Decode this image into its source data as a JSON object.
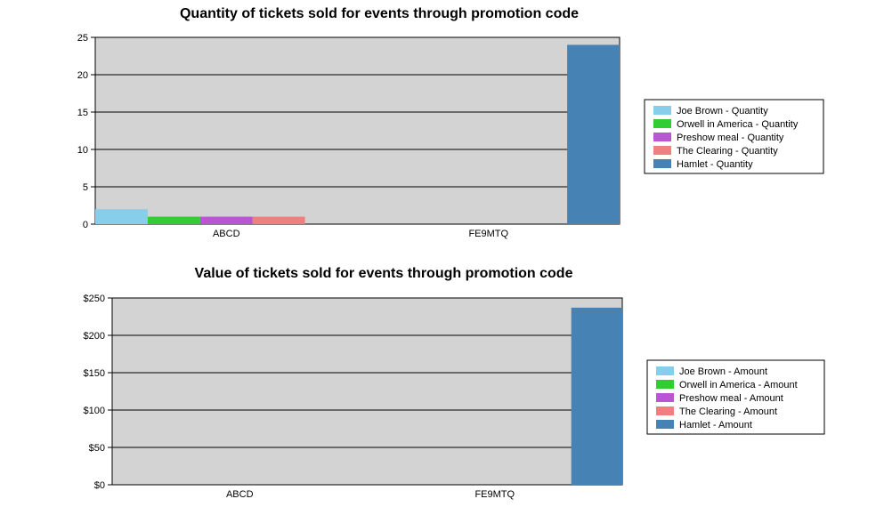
{
  "chart_data": [
    {
      "type": "bar",
      "title": "Quantity of tickets sold for events through promotion code",
      "categories": [
        "ABCD",
        "FE9MTQ"
      ],
      "ylim": [
        0,
        25
      ],
      "yticks": [
        0,
        5,
        10,
        15,
        20,
        25
      ],
      "ytick_labels": [
        "0",
        "5",
        "10",
        "15",
        "20",
        "25"
      ],
      "grid": true,
      "legend_position": "right",
      "series": [
        {
          "name": "Joe Brown - Quantity",
          "color": "#87ceeb",
          "values": [
            2,
            0
          ]
        },
        {
          "name": "Orwell in America - Quantity",
          "color": "#32cd32",
          "values": [
            1,
            0
          ]
        },
        {
          "name": "Preshow meal - Quantity",
          "color": "#ba55d3",
          "values": [
            1,
            0
          ]
        },
        {
          "name": "The Clearing - Quantity",
          "color": "#f08080",
          "values": [
            1,
            0
          ]
        },
        {
          "name": "Hamlet - Quantity",
          "color": "#4682b4",
          "values": [
            0,
            24
          ]
        }
      ]
    },
    {
      "type": "bar",
      "title": "Value of tickets sold for events through promotion code",
      "categories": [
        "ABCD",
        "FE9MTQ"
      ],
      "ylim": [
        0,
        250
      ],
      "yticks": [
        0,
        50,
        100,
        150,
        200,
        250
      ],
      "ytick_labels": [
        "$0",
        "$50",
        "$100",
        "$150",
        "$200",
        "$250"
      ],
      "grid": true,
      "legend_position": "right",
      "series": [
        {
          "name": "Joe Brown - Amount",
          "color": "#87ceeb",
          "values": [
            0,
            0
          ]
        },
        {
          "name": "Orwell in America - Amount",
          "color": "#32cd32",
          "values": [
            0,
            0
          ]
        },
        {
          "name": "Preshow meal - Amount",
          "color": "#ba55d3",
          "values": [
            0,
            0
          ]
        },
        {
          "name": "The Clearing - Amount",
          "color": "#f08080",
          "values": [
            0,
            0
          ]
        },
        {
          "name": "Hamlet - Amount",
          "color": "#4682b4",
          "values": [
            0,
            237
          ]
        }
      ]
    }
  ]
}
